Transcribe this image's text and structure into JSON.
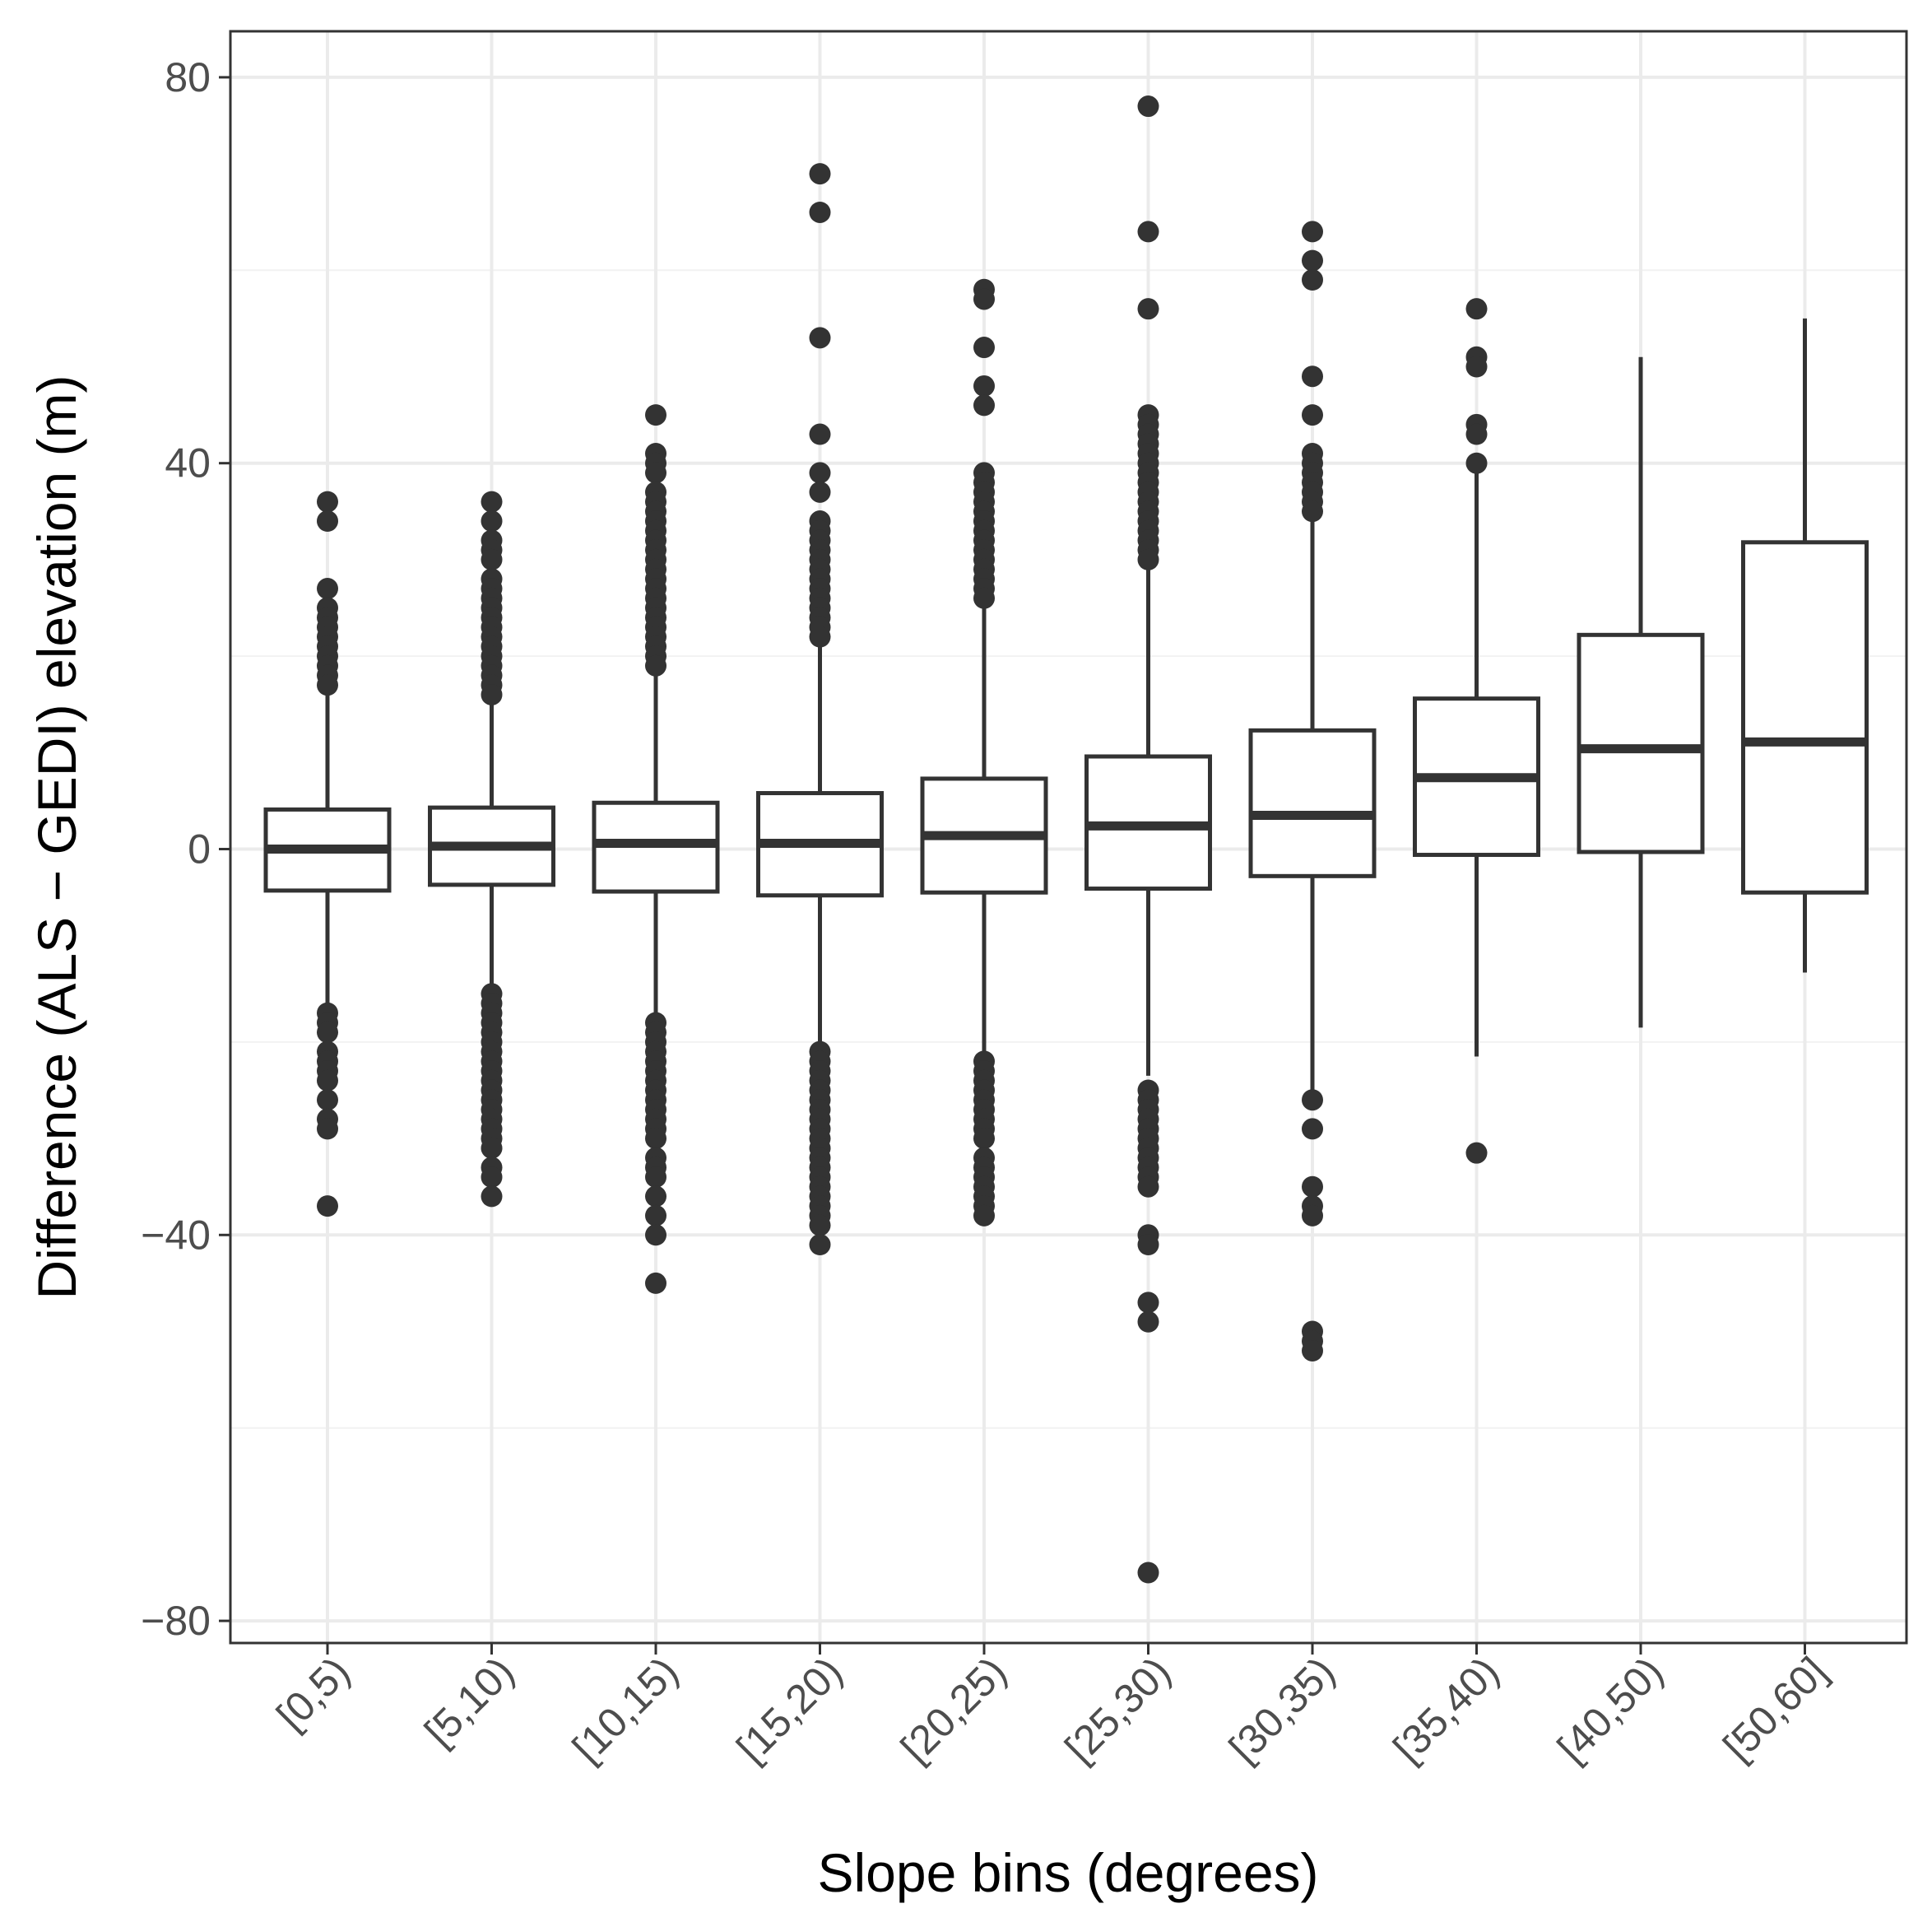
{
  "chart_data": {
    "type": "boxplot",
    "xlabel": "Slope bins (degrees)",
    "ylabel": "Difference (ALS − GEDI) elevation (m)",
    "ylim": [
      -82,
      86
    ],
    "y_ticks": [
      -80,
      -40,
      0,
      40,
      80
    ],
    "y_tick_labels": [
      "−80",
      "−40",
      "0",
      "40",
      "80"
    ],
    "grid": true,
    "colors": {
      "box": "#333333",
      "fill": "#ffffff",
      "grid_major": "#ebebeb",
      "grid_minor": "#f2f2f2",
      "panel_border": "#333333"
    },
    "categories": [
      "[0,5)",
      "[5,10)",
      "[10,15)",
      "[15,20)",
      "[20,25)",
      "[25,30)",
      "[30,35)",
      "[35,40)",
      "[40,50)",
      "[50,60]"
    ],
    "boxes": [
      {
        "category": "[0,5)",
        "whisker_low": -16,
        "q1": -4.3,
        "median": 0,
        "q3": 4.1,
        "whisker_high": 16,
        "outliers": [
          36,
          34,
          27,
          25,
          24,
          23,
          22,
          21,
          20,
          19,
          18,
          17,
          -17,
          -18,
          -19,
          -21,
          -22,
          -23,
          -24,
          -26,
          -28,
          -29,
          -37
        ]
      },
      {
        "category": "[5,10)",
        "whisker_low": -15,
        "q1": -3.7,
        "median": 0.3,
        "q3": 4.3,
        "whisker_high": 15.5,
        "outliers": [
          36,
          34,
          32,
          31,
          30,
          28,
          27,
          26,
          25,
          24,
          23,
          22,
          21,
          20,
          19,
          18,
          17,
          16,
          -15,
          -16,
          -17,
          -18,
          -19,
          -20,
          -21,
          -22,
          -23,
          -24,
          -25,
          -26,
          -27,
          -28,
          -29,
          -30,
          -31,
          -33,
          -34,
          -36
        ]
      },
      {
        "category": "[10,15)",
        "whisker_low": -17.5,
        "q1": -4.4,
        "median": 0.6,
        "q3": 4.8,
        "whisker_high": 18.5,
        "outliers": [
          45,
          41,
          40,
          39,
          37,
          36,
          35,
          34,
          33,
          32,
          31,
          30,
          29,
          28,
          27,
          26,
          25,
          24,
          23,
          22,
          21,
          20,
          19,
          -18,
          -19,
          -20,
          -21,
          -22,
          -23,
          -24,
          -25,
          -26,
          -27,
          -28,
          -29,
          -30,
          -32,
          -33,
          -34,
          -36,
          -38,
          -40,
          -45
        ]
      },
      {
        "category": "[15,20)",
        "whisker_low": -20,
        "q1": -4.8,
        "median": 0.6,
        "q3": 5.8,
        "whisker_high": 21.5,
        "outliers": [
          70,
          66,
          53,
          43,
          39,
          37,
          34,
          33,
          32,
          31,
          30,
          29,
          28,
          27,
          26,
          25,
          24,
          23,
          22,
          -21,
          -22,
          -23,
          -24,
          -25,
          -26,
          -27,
          -28,
          -29,
          -30,
          -31,
          -32,
          -33,
          -34,
          -35,
          -36,
          -37,
          -38,
          -39,
          -41
        ]
      },
      {
        "category": "[20,25)",
        "whisker_low": -22,
        "q1": -4.5,
        "median": 1.4,
        "q3": 7.3,
        "whisker_high": 25.5,
        "outliers": [
          58,
          57,
          52,
          48,
          46,
          39,
          38,
          37,
          36,
          35,
          34,
          33,
          32,
          31,
          30,
          29,
          28,
          27,
          26,
          -22,
          -23,
          -24,
          -25,
          -26,
          -27,
          -28,
          -29,
          -30,
          -32,
          -33,
          -34,
          -35,
          -36,
          -37,
          -38
        ]
      },
      {
        "category": "[25,30)",
        "whisker_low": -23.5,
        "q1": -4.1,
        "median": 2.4,
        "q3": 9.6,
        "whisker_high": 29.5,
        "outliers": [
          77,
          64,
          56,
          45,
          44,
          43,
          42,
          41,
          40,
          39,
          38,
          37,
          36,
          35,
          34,
          33,
          32,
          31,
          30,
          -25,
          -26,
          -27,
          -28,
          -29,
          -30,
          -31,
          -32,
          -33,
          -34,
          -35,
          -40,
          -41,
          -47,
          -49,
          -75
        ]
      },
      {
        "category": "[30,35)",
        "whisker_low": -25,
        "q1": -2.8,
        "median": 3.5,
        "q3": 12.3,
        "whisker_high": 34.5,
        "outliers": [
          64,
          61,
          59,
          49,
          45,
          41,
          40,
          39,
          38,
          37,
          36,
          35,
          -26,
          -29,
          -35,
          -37,
          -38,
          -50,
          -51,
          -52
        ]
      },
      {
        "category": "[35,40)",
        "whisker_low": -21.5,
        "q1": -0.6,
        "median": 7.4,
        "q3": 15.6,
        "whisker_high": 39.5,
        "outliers": [
          56,
          51,
          50,
          44,
          43,
          40,
          -31.5
        ]
      },
      {
        "category": "[40,50)",
        "whisker_low": -18.5,
        "q1": -0.3,
        "median": 10.4,
        "q3": 22.2,
        "whisker_high": 51,
        "outliers": []
      },
      {
        "category": "[50,60]",
        "whisker_low": -12.8,
        "q1": -4.5,
        "median": 11.1,
        "q3": 31.8,
        "whisker_high": 55,
        "outliers": []
      }
    ]
  }
}
